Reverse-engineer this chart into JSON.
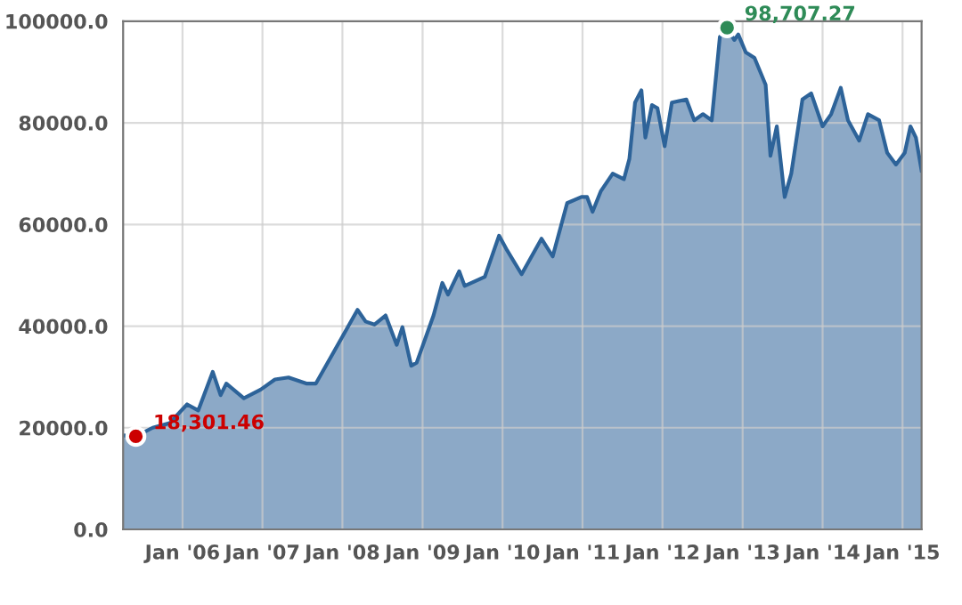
{
  "chart_data": {
    "type": "area",
    "x": [
      "2005-04-05",
      "2005-06-02",
      "2005-08-18",
      "2005-11-03",
      "2006-01-22",
      "2006-03-14",
      "2006-05-19",
      "2006-06-24",
      "2006-07-20",
      "2006-10-08",
      "2006-12-24",
      "2007-02-27",
      "2007-04-30",
      "2007-07-20",
      "2007-09-02",
      "2007-11-25",
      "2008-03-10",
      "2008-04-16",
      "2008-05-26",
      "2008-07-16",
      "2008-09-05",
      "2008-10-01",
      "2008-11-10",
      "2008-12-05",
      "2009-02-20",
      "2009-04-01",
      "2009-04-27",
      "2009-06-17",
      "2009-07-12",
      "2009-10-12",
      "2009-12-16",
      "2010-01-22",
      "2010-03-29",
      "2010-06-28",
      "2010-08-18",
      "2010-10-23",
      "2010-12-27",
      "2011-01-22",
      "2011-02-16",
      "2011-03-25",
      "2011-05-19",
      "2011-07-09",
      "2011-08-03",
      "2011-08-29",
      "2011-09-27",
      "2011-10-15",
      "2011-11-14",
      "2011-12-09",
      "2012-01-11",
      "2012-02-13",
      "2012-04-19",
      "2012-05-25",
      "2012-07-04",
      "2012-08-13",
      "2012-09-19",
      "2012-10-22",
      "2012-11-24",
      "2012-12-12",
      "2013-01-15",
      "2013-02-24",
      "2013-04-16",
      "2013-05-08",
      "2013-06-06",
      "2013-07-12",
      "2013-08-11",
      "2013-10-01",
      "2013-11-10",
      "2014-01-01",
      "2014-02-09",
      "2014-03-25",
      "2014-04-27",
      "2014-06-17",
      "2014-07-27",
      "2014-09-16",
      "2014-10-23",
      "2014-12-02",
      "2015-01-11",
      "2015-02-06",
      "2015-03-03",
      "2015-03-29"
    ],
    "series": [
      {
        "color": "#2d6399",
        "values": [
          18500,
          18301.46,
          20000,
          20900,
          24600,
          23400,
          31000,
          26400,
          28700,
          25800,
          27500,
          29500,
          29900,
          28700,
          28700,
          35100,
          43200,
          40900,
          40300,
          42100,
          36300,
          39800,
          32200,
          32800,
          42100,
          48500,
          46200,
          50800,
          47900,
          49700,
          57800,
          54900,
          50200,
          57200,
          53700,
          64200,
          65400,
          65400,
          62500,
          66500,
          70000,
          68900,
          72900,
          84000,
          86400,
          77100,
          83500,
          82900,
          75400,
          84000,
          84600,
          80500,
          81700,
          80500,
          96900,
          98707.27,
          96300,
          97400,
          93900,
          92800,
          87500,
          73500,
          79300,
          65400,
          70000,
          84600,
          85800,
          79300,
          81700,
          86900,
          80500,
          76500,
          81700,
          80500,
          74100,
          71800,
          74100,
          79300,
          77100,
          70600
        ]
      }
    ],
    "xlim": [
      "2005-04-05",
      "2015-03-29"
    ],
    "ylim": [
      0,
      100000
    ],
    "xticks": [
      {
        "value": "2006-01-01",
        "label": "Jan '06"
      },
      {
        "value": "2007-01-01",
        "label": "Jan '07"
      },
      {
        "value": "2008-01-01",
        "label": "Jan '08"
      },
      {
        "value": "2009-01-01",
        "label": "Jan '09"
      },
      {
        "value": "2010-01-01",
        "label": "Jan '10"
      },
      {
        "value": "2011-01-01",
        "label": "Jan '11"
      },
      {
        "value": "2012-01-01",
        "label": "Jan '12"
      },
      {
        "value": "2013-01-01",
        "label": "Jan '13"
      },
      {
        "value": "2014-01-01",
        "label": "Jan '14"
      },
      {
        "value": "2015-01-01",
        "label": "Jan '15"
      }
    ],
    "yticks": [
      {
        "value": 0,
        "label": "0.0"
      },
      {
        "value": 20000,
        "label": "20000.0"
      },
      {
        "value": 40000,
        "label": "40000.0"
      },
      {
        "value": 60000,
        "label": "60000.0"
      },
      {
        "value": 80000,
        "label": "80000.0"
      },
      {
        "value": 100000,
        "label": "100000.0"
      }
    ],
    "grid": true,
    "annotations": [
      {
        "text": "18,301.46",
        "x": "2005-06-02",
        "y": 18301.46
      },
      {
        "text": "98,707.27",
        "x": "2012-10-22",
        "y": 98707.27
      }
    ]
  }
}
